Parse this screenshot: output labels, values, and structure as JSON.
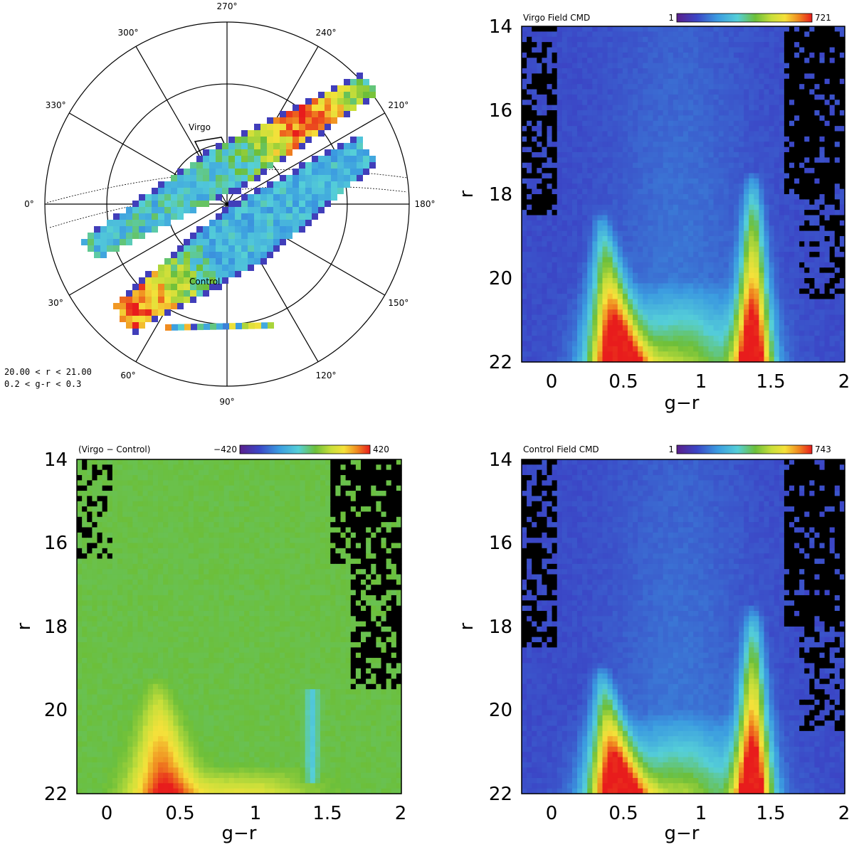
{
  "chart_data": [
    {
      "panel": "top-left",
      "type": "polar-map",
      "angle_labels": [
        "270°",
        "240°",
        "210°",
        "180°",
        "150°",
        "120°",
        "90°",
        "60°",
        "30°",
        "0°",
        "330°",
        "300°"
      ],
      "angles_deg": [
        270,
        240,
        210,
        180,
        150,
        120,
        90,
        60,
        30,
        0,
        330,
        300
      ],
      "region_labels": {
        "virgo": "Virgo",
        "control": "Control"
      },
      "selection_lines": [
        "20.00 < r < 21.00",
        "0.2 < g-r < 0.3"
      ]
    },
    {
      "panel": "top-right",
      "type": "heatmap",
      "title": "Virgo Field CMD",
      "xlabel": "g−r",
      "ylabel": "r",
      "xlim": [
        -0.25,
        2.0
      ],
      "ylim": [
        14,
        22
      ],
      "y_inverted": true,
      "xticks": [
        "0",
        "0.5",
        "1",
        "1.5",
        "2"
      ],
      "xtick_values": [
        0,
        0.5,
        1,
        1.5,
        2
      ],
      "yticks": [
        "14",
        "16",
        "18",
        "20",
        "22"
      ],
      "ytick_values": [
        14,
        16,
        18,
        20,
        22
      ],
      "colorbar": {
        "min_label": "1",
        "max_label": "721"
      },
      "features": {
        "blue_peak_gr": 0.3,
        "red_peak_gr": 1.36,
        "red_ridge_top_r": 17.5,
        "blue_ridge_top_r": 18.4
      }
    },
    {
      "panel": "bottom-left",
      "type": "heatmap",
      "title": "(Virgo − Control)",
      "xlabel": "g−r",
      "ylabel": "r",
      "xlim": [
        -0.25,
        2.0
      ],
      "ylim": [
        14,
        22
      ],
      "y_inverted": true,
      "xticks": [
        "0",
        "0.5",
        "1",
        "1.5",
        "2"
      ],
      "xtick_values": [
        0,
        0.5,
        1,
        1.5,
        2
      ],
      "yticks": [
        "14",
        "16",
        "18",
        "20",
        "22"
      ],
      "ytick_values": [
        14,
        16,
        18,
        20,
        22
      ],
      "colorbar": {
        "min_label": "−420",
        "max_label": "420"
      },
      "features": {
        "excess_peak_gr": 0.33,
        "excess_top_r": 19.2
      }
    },
    {
      "panel": "bottom-right",
      "type": "heatmap",
      "title": "Control Field CMD",
      "xlabel": "g−r",
      "ylabel": "r",
      "xlim": [
        -0.25,
        2.0
      ],
      "ylim": [
        14,
        22
      ],
      "y_inverted": true,
      "xticks": [
        "0",
        "0.5",
        "1",
        "1.5",
        "2"
      ],
      "xtick_values": [
        0,
        0.5,
        1,
        1.5,
        2
      ],
      "yticks": [
        "14",
        "16",
        "18",
        "20",
        "22"
      ],
      "ytick_values": [
        14,
        16,
        18,
        20,
        22
      ],
      "colorbar": {
        "min_label": "1",
        "max_label": "743"
      },
      "features": {
        "blue_peak_gr": 0.3,
        "red_peak_gr": 1.36,
        "red_ridge_top_r": 17.5,
        "blue_ridge_top_r": 18.9
      }
    }
  ]
}
